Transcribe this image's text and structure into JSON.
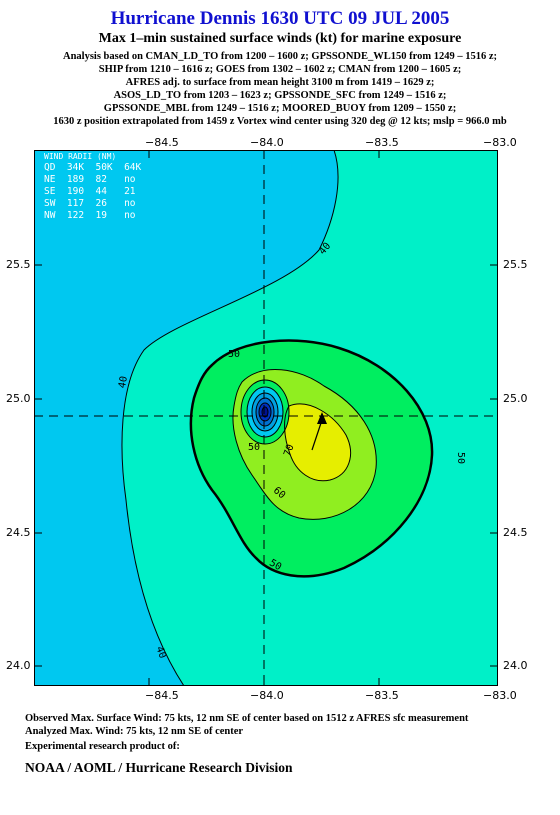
{
  "title": "Hurricane Dennis 1630 UTC 09 JUL 2005",
  "subtitle": "Max 1–min sustained surface winds (kt) for marine exposure",
  "analysis_lines": [
    "Analysis based on  CMAN_LD_TO from 1200 – 1600 z;  GPSSONDE_WL150 from 1249 – 1516 z;",
    "SHIP from 1210 – 1616 z;  GOES from 1302 – 1602 z;  CMAN from 1200 – 1605 z;",
    "AFRES adj. to surface from mean height 3100 m from 1419 – 1629 z;",
    "ASOS_LD_TO from 1203 – 1623 z;  GPSSONDE_SFC from 1249 – 1516 z;",
    "GPSSONDE_MBL from 1249 – 1516 z;  MOORED_BUOY from 1209 – 1550 z;",
    "1630 z position extrapolated from 1459 z Vortex wind center using 320 deg @ 12 kts; mslp = 966.0 mb"
  ],
  "axes": {
    "x_ticks": [
      "−84.5",
      "−84.0",
      "−83.5",
      "−83.0"
    ],
    "y_ticks": [
      "25.5",
      "25.0",
      "24.5",
      "24.0"
    ],
    "x_range": [
      -85.0,
      -83.0
    ],
    "y_range": [
      23.9,
      25.95
    ]
  },
  "center": {
    "lon": -84.0,
    "lat": 24.93
  },
  "wind_radii": {
    "title": "WIND RADII (NM)",
    "header": "QD  34K  50K  64K",
    "rows": [
      "NE  189  82   no",
      "SE  190  44   21",
      "SW  117  26   no",
      "NW  122  19   no"
    ]
  },
  "contour_labels": [
    "40",
    "40",
    "40",
    "50",
    "50",
    "50",
    "50",
    "60",
    "70"
  ],
  "colors": {
    "c30": "#00c8f0",
    "c40": "#00f0c8",
    "c50": "#00ee60",
    "c60": "#90ee20",
    "c70": "#e6ee00",
    "eye": "#0030c0",
    "title": "#1010d0"
  },
  "footer": {
    "observed": "Observed Max. Surface Wind: 75 kts, 12 nm SE of center based on 1512 z AFRES sfc measurement",
    "analyzed": "Analyzed Max. Wind: 75 kts, 12 nm SE of center",
    "experimental": "Experimental research product of:",
    "org": "NOAA / AOML / Hurricane Research Division"
  }
}
